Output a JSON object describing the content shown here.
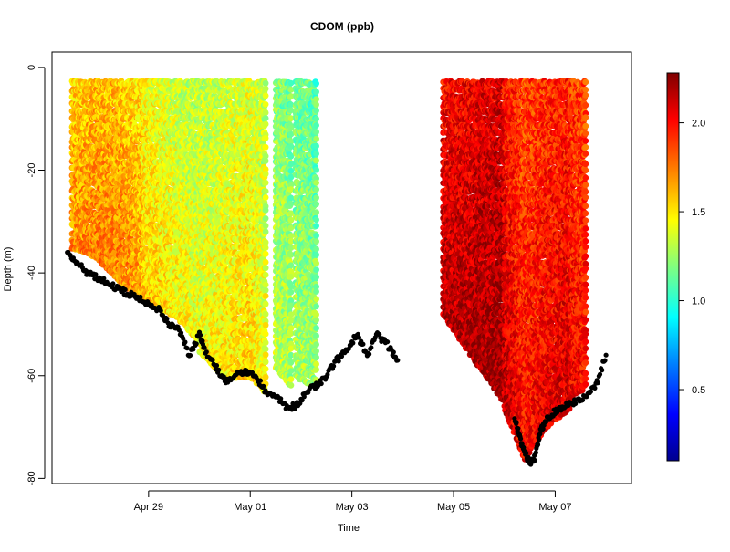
{
  "chart_data": {
    "type": "scatter",
    "title": "CDOM (ppb)",
    "xlabel": "Time",
    "ylabel": "Depth (m)",
    "x_unit": "days",
    "x_ticks": [
      {
        "value": 29,
        "label": "Apr 29"
      },
      {
        "value": 31,
        "label": "May 01"
      },
      {
        "value": 33,
        "label": "May 03"
      },
      {
        "value": 35,
        "label": "May 05"
      },
      {
        "value": 37,
        "label": "May 07"
      }
    ],
    "xlim": [
      27.1,
      38.5
    ],
    "ylim": [
      -81,
      3
    ],
    "y_ticks": [
      0,
      -20,
      -40,
      -60,
      -80
    ],
    "grid": false,
    "colorbar": {
      "range": [
        0.1,
        2.28
      ],
      "ticks": [
        0.5,
        1.0,
        1.5,
        2.0
      ],
      "tick_labels": [
        "0.5",
        "1.0",
        "1.5",
        "2.0"
      ],
      "colormap": [
        "#00008f",
        "#0000ff",
        "#0080ff",
        "#00ffff",
        "#80ff80",
        "#ffff00",
        "#ff8000",
        "#ff0000",
        "#800000"
      ]
    },
    "series": [
      {
        "kind": "cdom_profiles",
        "note_color": "value",
        "segments": [
          {
            "x": [
              27.5,
              28.0,
              28.5,
              28.9
            ],
            "top": -3,
            "bottom": [
              -35,
              -37,
              -42,
              -45
            ],
            "value_mean": [
              1.55,
              1.6,
              1.58,
              1.5
            ]
          },
          {
            "x": [
              28.9,
              29.5,
              30.0
            ],
            "top": -3,
            "bottom": [
              -45,
              -48,
              -53
            ],
            "value_mean": [
              1.45,
              1.35,
              1.3
            ]
          },
          {
            "x": [
              30.0,
              30.5,
              31.0,
              31.3
            ],
            "top": -3,
            "bottom": [
              -55,
              -60,
              -60,
              -63
            ],
            "value_mean": [
              1.3,
              1.35,
              1.4,
              1.3
            ]
          },
          {
            "x": [
              31.5,
              31.8
            ],
            "top": -3,
            "bottom": [
              -58,
              -62
            ],
            "value_mean": [
              1.2,
              1.15
            ]
          },
          {
            "x": [
              31.9,
              32.3
            ],
            "top": -3,
            "bottom": [
              -60,
              -62
            ],
            "value_mean": [
              1.15,
              1.1
            ]
          },
          {
            "x": [
              34.8,
              35.5,
              36.0
            ],
            "top": -3,
            "bottom": [
              -48,
              -58,
              -65
            ],
            "value_mean": [
              2.0,
              2.05,
              2.1
            ]
          },
          {
            "x": [
              36.0,
              36.4,
              36.8,
              37.3
            ],
            "top": -3,
            "bottom": [
              -66,
              -76,
              -70,
              -66
            ],
            "value_mean": [
              2.0,
              1.85,
              1.9,
              1.95
            ]
          },
          {
            "x": [
              37.3,
              37.6
            ],
            "top": -3,
            "bottom": [
              -64,
              -62
            ],
            "value_mean": [
              1.9,
              1.85
            ]
          }
        ]
      },
      {
        "kind": "bottom_depth",
        "color": "#000000",
        "x": [
          27.4,
          27.6,
          27.8,
          28.0,
          28.2,
          28.4,
          28.6,
          28.8,
          29.0,
          29.2,
          29.4,
          29.6,
          29.8,
          30.0,
          30.1,
          30.3,
          30.5,
          30.7,
          30.9,
          31.1,
          31.3,
          31.5,
          31.7,
          31.9,
          32.1,
          32.3,
          32.5,
          32.7,
          32.9,
          33.1,
          33.3,
          33.5,
          33.7,
          33.9
        ],
        "y": [
          -36,
          -38,
          -40,
          -41,
          -42,
          -43,
          -44,
          -45,
          -46,
          -47,
          -50,
          -51,
          -56,
          -52,
          -55,
          -58,
          -61,
          -60,
          -59,
          -60,
          -63,
          -64,
          -66,
          -66,
          -63,
          -62,
          -60,
          -57,
          -55,
          -52,
          -56,
          -52,
          -54,
          -57
        ]
      },
      {
        "kind": "bottom_depth",
        "color": "#000000",
        "x": [
          36.2,
          36.3,
          36.4,
          36.5,
          36.6,
          36.7,
          36.8,
          37.0,
          37.2,
          37.4,
          37.6,
          37.8,
          38.0
        ],
        "y": [
          -68,
          -72,
          -75,
          -77,
          -76,
          -71,
          -69,
          -67,
          -66,
          -65,
          -64,
          -62,
          -56
        ]
      }
    ]
  }
}
